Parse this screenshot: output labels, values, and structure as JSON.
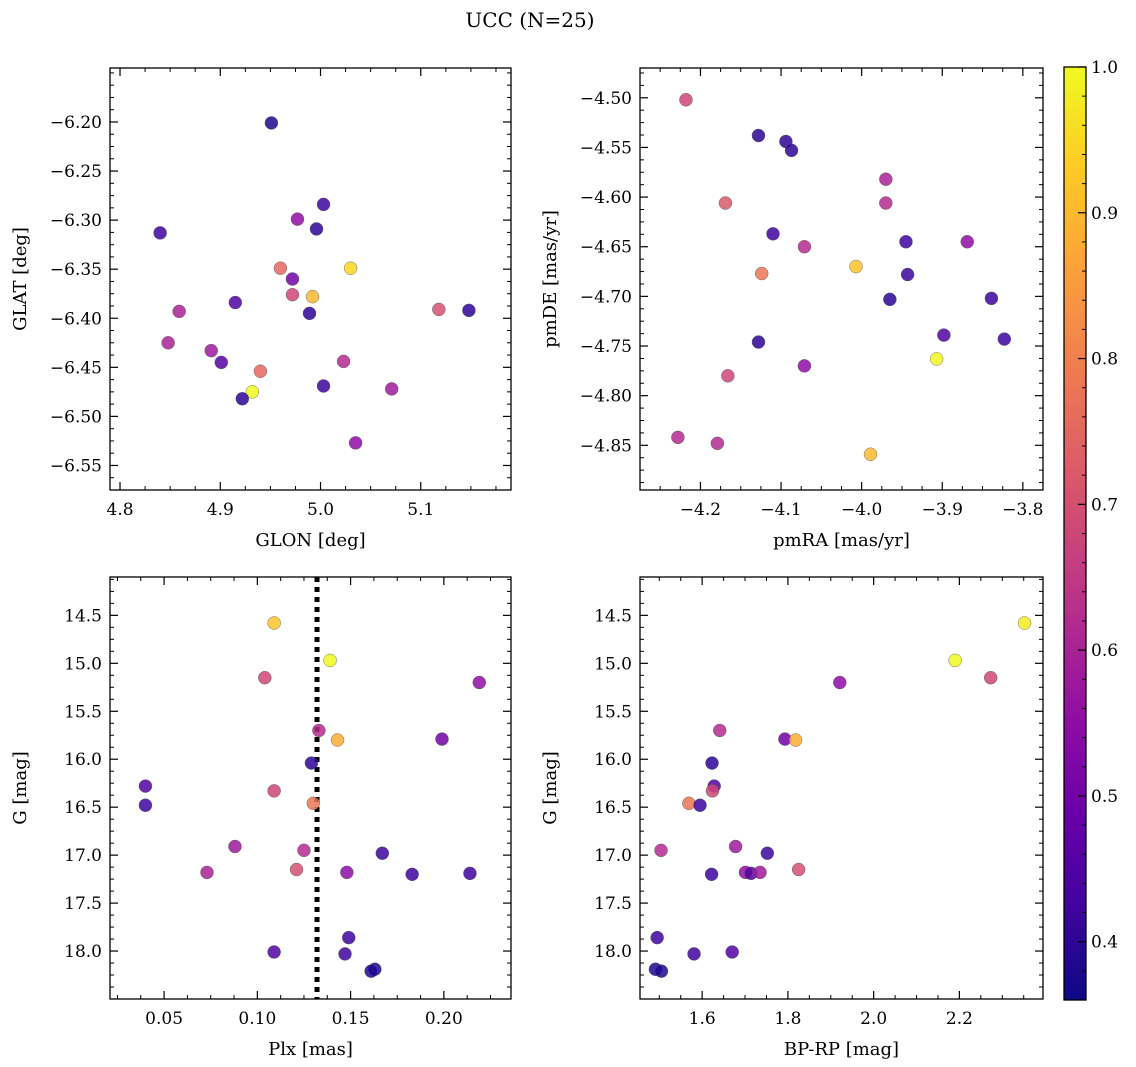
{
  "figure": {
    "title": "UCC (N=25)"
  },
  "colorbar": {
    "colormap": "plasma",
    "range": [
      0.36,
      1.0
    ],
    "ticks": [
      "0.4",
      "0.5",
      "0.6",
      "0.7",
      "0.8",
      "0.9",
      "1.0"
    ],
    "tick_values": [
      0.4,
      0.5,
      0.6,
      0.7,
      0.8,
      0.9,
      1.0
    ]
  },
  "chart_data": [
    {
      "type": "scatter",
      "xlabel": "GLON [deg]",
      "ylabel": "GLAT [deg]",
      "xlim": [
        4.79,
        5.19
      ],
      "ylim": [
        -6.575,
        -6.145
      ],
      "y_inverted": false,
      "xticks": [
        4.8,
        4.9,
        5.0,
        5.1
      ],
      "xtick_labels": [
        "4.8",
        "4.9",
        "5.0",
        "5.1"
      ],
      "yticks": [
        -6.2,
        -6.25,
        -6.3,
        -6.35,
        -6.4,
        -6.45,
        -6.5,
        -6.55
      ],
      "ytick_labels": [
        "−6.20",
        "−6.25",
        "−6.30",
        "−6.35",
        "−6.40",
        "−6.45",
        "−6.50",
        "−6.55"
      ],
      "points": [
        {
          "x": 4.951,
          "y": -6.201,
          "c": 0.38
        },
        {
          "x": 4.84,
          "y": -6.313,
          "c": 0.42
        },
        {
          "x": 5.003,
          "y": -6.284,
          "c": 0.42
        },
        {
          "x": 4.977,
          "y": -6.299,
          "c": 0.55
        },
        {
          "x": 4.996,
          "y": -6.309,
          "c": 0.4
        },
        {
          "x": 4.96,
          "y": -6.349,
          "c": 0.75
        },
        {
          "x": 5.03,
          "y": -6.349,
          "c": 0.95
        },
        {
          "x": 4.972,
          "y": -6.36,
          "c": 0.5
        },
        {
          "x": 4.972,
          "y": -6.376,
          "c": 0.68
        },
        {
          "x": 4.992,
          "y": -6.378,
          "c": 0.9
        },
        {
          "x": 4.915,
          "y": -6.384,
          "c": 0.45
        },
        {
          "x": 4.859,
          "y": -6.393,
          "c": 0.6
        },
        {
          "x": 5.118,
          "y": -6.391,
          "c": 0.7
        },
        {
          "x": 5.148,
          "y": -6.392,
          "c": 0.4
        },
        {
          "x": 4.989,
          "y": -6.395,
          "c": 0.4
        },
        {
          "x": 4.848,
          "y": -6.425,
          "c": 0.6
        },
        {
          "x": 4.891,
          "y": -6.433,
          "c": 0.58
        },
        {
          "x": 4.901,
          "y": -6.445,
          "c": 0.45
        },
        {
          "x": 5.023,
          "y": -6.444,
          "c": 0.62
        },
        {
          "x": 4.94,
          "y": -6.454,
          "c": 0.75
        },
        {
          "x": 5.003,
          "y": -6.469,
          "c": 0.42
        },
        {
          "x": 5.071,
          "y": -6.472,
          "c": 0.58
        },
        {
          "x": 4.932,
          "y": -6.475,
          "c": 1.0
        },
        {
          "x": 4.922,
          "y": -6.482,
          "c": 0.4
        },
        {
          "x": 5.035,
          "y": -6.527,
          "c": 0.55
        }
      ]
    },
    {
      "type": "scatter",
      "xlabel": "pmRA [mas/yr]",
      "ylabel": "pmDE [mas/yr]",
      "xlim": [
        -4.275,
        -3.775
      ],
      "ylim": [
        -4.895,
        -4.47
      ],
      "y_inverted": false,
      "xticks": [
        -4.2,
        -4.1,
        -4.0,
        -3.9,
        -3.8
      ],
      "xtick_labels": [
        "−4.2",
        "−4.1",
        "−4.0",
        "−3.9",
        "−3.8"
      ],
      "yticks": [
        -4.5,
        -4.55,
        -4.6,
        -4.65,
        -4.7,
        -4.75,
        -4.8,
        -4.85
      ],
      "ytick_labels": [
        "−4.50",
        "−4.55",
        "−4.60",
        "−4.65",
        "−4.70",
        "−4.75",
        "−4.80",
        "−4.85"
      ],
      "points": [
        {
          "x": -4.218,
          "y": -4.502,
          "c": 0.68
        },
        {
          "x": -4.128,
          "y": -4.538,
          "c": 0.4
        },
        {
          "x": -4.094,
          "y": -4.544,
          "c": 0.4
        },
        {
          "x": -4.087,
          "y": -4.553,
          "c": 0.4
        },
        {
          "x": -3.97,
          "y": -4.582,
          "c": 0.6
        },
        {
          "x": -4.169,
          "y": -4.606,
          "c": 0.72
        },
        {
          "x": -3.97,
          "y": -4.606,
          "c": 0.62
        },
        {
          "x": -4.11,
          "y": -4.637,
          "c": 0.42
        },
        {
          "x": -4.071,
          "y": -4.65,
          "c": 0.62
        },
        {
          "x": -3.945,
          "y": -4.645,
          "c": 0.42
        },
        {
          "x": -3.869,
          "y": -4.645,
          "c": 0.55
        },
        {
          "x": -4.007,
          "y": -4.67,
          "c": 0.92
        },
        {
          "x": -4.124,
          "y": -4.677,
          "c": 0.78
        },
        {
          "x": -3.943,
          "y": -4.678,
          "c": 0.42
        },
        {
          "x": -3.965,
          "y": -4.703,
          "c": 0.4
        },
        {
          "x": -3.839,
          "y": -4.702,
          "c": 0.42
        },
        {
          "x": -3.898,
          "y": -4.739,
          "c": 0.45
        },
        {
          "x": -3.823,
          "y": -4.743,
          "c": 0.42
        },
        {
          "x": -4.128,
          "y": -4.746,
          "c": 0.4
        },
        {
          "x": -3.907,
          "y": -4.763,
          "c": 1.0
        },
        {
          "x": -4.071,
          "y": -4.77,
          "c": 0.55
        },
        {
          "x": -4.166,
          "y": -4.78,
          "c": 0.68
        },
        {
          "x": -4.228,
          "y": -4.842,
          "c": 0.62
        },
        {
          "x": -4.179,
          "y": -4.848,
          "c": 0.62
        },
        {
          "x": -3.989,
          "y": -4.859,
          "c": 0.9
        }
      ]
    },
    {
      "type": "scatter",
      "xlabel": "Plx [mas]",
      "ylabel": "G [mag]",
      "xlim": [
        0.021,
        0.236
      ],
      "ylim": [
        18.5,
        14.1
      ],
      "y_inverted": true,
      "xticks": [
        0.05,
        0.1,
        0.15,
        0.2
      ],
      "xtick_labels": [
        "0.05",
        "0.10",
        "0.15",
        "0.20"
      ],
      "yticks": [
        14.5,
        15.0,
        15.5,
        16.0,
        16.5,
        17.0,
        17.5,
        18.0
      ],
      "ytick_labels": [
        "14.5",
        "15.0",
        "15.5",
        "16.0",
        "16.5",
        "17.0",
        "17.5",
        "18.0"
      ],
      "vline": {
        "x": 0.132,
        "style": "dotted",
        "color": "#000000"
      },
      "points": [
        {
          "x": 0.109,
          "y": 14.58,
          "c": 0.92
        },
        {
          "x": 0.139,
          "y": 14.97,
          "c": 1.0
        },
        {
          "x": 0.104,
          "y": 15.15,
          "c": 0.68
        },
        {
          "x": 0.219,
          "y": 15.2,
          "c": 0.55
        },
        {
          "x": 0.133,
          "y": 15.7,
          "c": 0.62
        },
        {
          "x": 0.143,
          "y": 15.8,
          "c": 0.88
        },
        {
          "x": 0.199,
          "y": 15.79,
          "c": 0.5
        },
        {
          "x": 0.129,
          "y": 16.04,
          "c": 0.4
        },
        {
          "x": 0.04,
          "y": 16.28,
          "c": 0.45
        },
        {
          "x": 0.109,
          "y": 16.33,
          "c": 0.68
        },
        {
          "x": 0.13,
          "y": 16.46,
          "c": 0.78
        },
        {
          "x": 0.04,
          "y": 16.48,
          "c": 0.42
        },
        {
          "x": 0.088,
          "y": 16.91,
          "c": 0.58
        },
        {
          "x": 0.125,
          "y": 16.95,
          "c": 0.62
        },
        {
          "x": 0.167,
          "y": 16.98,
          "c": 0.42
        },
        {
          "x": 0.073,
          "y": 17.18,
          "c": 0.6
        },
        {
          "x": 0.121,
          "y": 17.15,
          "c": 0.7
        },
        {
          "x": 0.148,
          "y": 17.18,
          "c": 0.55
        },
        {
          "x": 0.183,
          "y": 17.2,
          "c": 0.42
        },
        {
          "x": 0.214,
          "y": 17.19,
          "c": 0.42
        },
        {
          "x": 0.109,
          "y": 18.01,
          "c": 0.45
        },
        {
          "x": 0.149,
          "y": 17.86,
          "c": 0.42
        },
        {
          "x": 0.147,
          "y": 18.03,
          "c": 0.42
        },
        {
          "x": 0.163,
          "y": 18.19,
          "c": 0.38
        },
        {
          "x": 0.161,
          "y": 18.21,
          "c": 0.38
        }
      ]
    },
    {
      "type": "scatter",
      "xlabel": "BP-RP [mag]",
      "ylabel": "G [mag]",
      "xlim": [
        1.455,
        2.395
      ],
      "ylim": [
        18.5,
        14.1
      ],
      "y_inverted": true,
      "xticks": [
        1.6,
        1.8,
        2.0,
        2.2
      ],
      "xtick_labels": [
        "1.6",
        "1.8",
        "2.0",
        "2.2"
      ],
      "yticks": [
        14.5,
        15.0,
        15.5,
        16.0,
        16.5,
        17.0,
        17.5,
        18.0
      ],
      "ytick_labels": [
        "14.5",
        "15.0",
        "15.5",
        "16.0",
        "16.5",
        "17.0",
        "17.5",
        "18.0"
      ],
      "points": [
        {
          "x": 2.352,
          "y": 14.58,
          "c": 0.98
        },
        {
          "x": 2.19,
          "y": 14.97,
          "c": 1.0
        },
        {
          "x": 2.273,
          "y": 15.15,
          "c": 0.68
        },
        {
          "x": 1.921,
          "y": 15.2,
          "c": 0.55
        },
        {
          "x": 1.641,
          "y": 15.7,
          "c": 0.62
        },
        {
          "x": 1.793,
          "y": 15.79,
          "c": 0.5
        },
        {
          "x": 1.818,
          "y": 15.8,
          "c": 0.88
        },
        {
          "x": 1.623,
          "y": 16.04,
          "c": 0.4
        },
        {
          "x": 1.628,
          "y": 16.28,
          "c": 0.45
        },
        {
          "x": 1.624,
          "y": 16.33,
          "c": 0.68
        },
        {
          "x": 1.569,
          "y": 16.46,
          "c": 0.78
        },
        {
          "x": 1.595,
          "y": 16.48,
          "c": 0.42
        },
        {
          "x": 1.504,
          "y": 16.95,
          "c": 0.62
        },
        {
          "x": 1.678,
          "y": 16.91,
          "c": 0.58
        },
        {
          "x": 1.752,
          "y": 16.98,
          "c": 0.42
        },
        {
          "x": 1.701,
          "y": 17.18,
          "c": 0.55
        },
        {
          "x": 1.714,
          "y": 17.19,
          "c": 0.45
        },
        {
          "x": 1.735,
          "y": 17.18,
          "c": 0.58
        },
        {
          "x": 1.825,
          "y": 17.15,
          "c": 0.7
        },
        {
          "x": 1.622,
          "y": 17.2,
          "c": 0.42
        },
        {
          "x": 1.495,
          "y": 17.86,
          "c": 0.42
        },
        {
          "x": 1.67,
          "y": 18.01,
          "c": 0.45
        },
        {
          "x": 1.581,
          "y": 18.03,
          "c": 0.42
        },
        {
          "x": 1.491,
          "y": 18.19,
          "c": 0.38
        },
        {
          "x": 1.505,
          "y": 18.21,
          "c": 0.38
        }
      ]
    }
  ]
}
